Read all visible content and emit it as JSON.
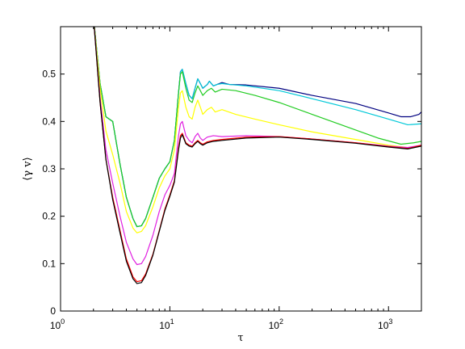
{
  "chart_data": {
    "type": "line",
    "title": "",
    "xlabel": "τ",
    "ylabel": "⟨γ v⟩",
    "xscale": "log",
    "xlim": [
      1,
      2000
    ],
    "ylim": [
      0,
      0.6
    ],
    "grid": false,
    "x_ticks": [
      {
        "value": 1,
        "base": "10",
        "exp": "0"
      },
      {
        "value": 10,
        "base": "10",
        "exp": "1"
      },
      {
        "value": 100,
        "base": "10",
        "exp": "2"
      },
      {
        "value": 1000,
        "base": "10",
        "exp": "3"
      }
    ],
    "y_ticks": [
      {
        "value": 0,
        "label": "0"
      },
      {
        "value": 0.1,
        "label": "0.1"
      },
      {
        "value": 0.2,
        "label": "0.2"
      },
      {
        "value": 0.3,
        "label": "0.3"
      },
      {
        "value": 0.4,
        "label": "0.4"
      },
      {
        "value": 0.5,
        "label": "0.5"
      }
    ],
    "series": [
      {
        "color": "#000080",
        "points": [
          [
            2.0,
            0.62
          ],
          [
            2.3,
            0.48
          ],
          [
            2.6,
            0.41
          ],
          [
            3.0,
            0.4
          ],
          [
            3.5,
            0.31
          ],
          [
            4.0,
            0.24
          ],
          [
            4.6,
            0.195
          ],
          [
            5.0,
            0.178
          ],
          [
            5.5,
            0.18
          ],
          [
            6.0,
            0.195
          ],
          [
            7.0,
            0.24
          ],
          [
            8.0,
            0.28
          ],
          [
            9.0,
            0.3
          ],
          [
            10.0,
            0.315
          ],
          [
            11.0,
            0.36
          ],
          [
            12.0,
            0.46
          ],
          [
            12.5,
            0.505
          ],
          [
            13.0,
            0.51
          ],
          [
            14.0,
            0.48
          ],
          [
            15.0,
            0.455
          ],
          [
            16.0,
            0.448
          ],
          [
            17.0,
            0.47
          ],
          [
            18.0,
            0.49
          ],
          [
            19.0,
            0.48
          ],
          [
            20.0,
            0.47
          ],
          [
            22.0,
            0.478
          ],
          [
            23.0,
            0.485
          ],
          [
            25.0,
            0.475
          ],
          [
            27.0,
            0.478
          ],
          [
            30.0,
            0.482
          ],
          [
            35.0,
            0.478
          ],
          [
            50.0,
            0.477
          ],
          [
            100.0,
            0.47
          ],
          [
            200.0,
            0.455
          ],
          [
            500.0,
            0.438
          ],
          [
            1000.0,
            0.418
          ],
          [
            1300.0,
            0.41
          ],
          [
            1600.0,
            0.41
          ],
          [
            1900.0,
            0.415
          ],
          [
            2000.0,
            0.42
          ]
        ]
      },
      {
        "color": "#00c8d8",
        "points": [
          [
            2.0,
            0.62
          ],
          [
            2.3,
            0.48
          ],
          [
            2.6,
            0.41
          ],
          [
            3.0,
            0.4
          ],
          [
            3.5,
            0.31
          ],
          [
            4.0,
            0.24
          ],
          [
            4.6,
            0.195
          ],
          [
            5.0,
            0.178
          ],
          [
            5.5,
            0.18
          ],
          [
            6.0,
            0.195
          ],
          [
            7.0,
            0.24
          ],
          [
            8.0,
            0.28
          ],
          [
            9.0,
            0.3
          ],
          [
            10.0,
            0.315
          ],
          [
            11.0,
            0.36
          ],
          [
            12.0,
            0.46
          ],
          [
            12.5,
            0.505
          ],
          [
            13.0,
            0.51
          ],
          [
            14.0,
            0.48
          ],
          [
            15.0,
            0.455
          ],
          [
            16.0,
            0.448
          ],
          [
            17.0,
            0.47
          ],
          [
            18.0,
            0.49
          ],
          [
            19.0,
            0.48
          ],
          [
            20.0,
            0.47
          ],
          [
            22.0,
            0.478
          ],
          [
            23.0,
            0.485
          ],
          [
            25.0,
            0.475
          ],
          [
            27.0,
            0.478
          ],
          [
            30.0,
            0.48
          ],
          [
            35.0,
            0.478
          ],
          [
            50.0,
            0.475
          ],
          [
            100.0,
            0.465
          ],
          [
            200.0,
            0.448
          ],
          [
            500.0,
            0.425
          ],
          [
            1000.0,
            0.405
          ],
          [
            1500.0,
            0.393
          ],
          [
            2000.0,
            0.395
          ]
        ]
      },
      {
        "color": "#22cc22",
        "points": [
          [
            2.0,
            0.62
          ],
          [
            2.3,
            0.48
          ],
          [
            2.6,
            0.41
          ],
          [
            3.0,
            0.4
          ],
          [
            3.5,
            0.31
          ],
          [
            4.0,
            0.24
          ],
          [
            4.6,
            0.195
          ],
          [
            5.0,
            0.178
          ],
          [
            5.5,
            0.18
          ],
          [
            6.0,
            0.195
          ],
          [
            7.0,
            0.24
          ],
          [
            8.0,
            0.28
          ],
          [
            9.0,
            0.3
          ],
          [
            10.0,
            0.315
          ],
          [
            11.0,
            0.36
          ],
          [
            12.0,
            0.46
          ],
          [
            12.5,
            0.5
          ],
          [
            13.0,
            0.505
          ],
          [
            14.0,
            0.47
          ],
          [
            15.0,
            0.445
          ],
          [
            16.0,
            0.44
          ],
          [
            17.0,
            0.46
          ],
          [
            18.0,
            0.475
          ],
          [
            19.0,
            0.465
          ],
          [
            20.0,
            0.455
          ],
          [
            22.0,
            0.465
          ],
          [
            24.0,
            0.47
          ],
          [
            26.0,
            0.462
          ],
          [
            30.0,
            0.468
          ],
          [
            40.0,
            0.465
          ],
          [
            60.0,
            0.455
          ],
          [
            100.0,
            0.44
          ],
          [
            200.0,
            0.415
          ],
          [
            400.0,
            0.39
          ],
          [
            800.0,
            0.365
          ],
          [
            1300.0,
            0.352
          ],
          [
            1700.0,
            0.355
          ],
          [
            2000.0,
            0.358
          ]
        ]
      },
      {
        "color": "#ffff00",
        "points": [
          [
            2.0,
            0.62
          ],
          [
            2.3,
            0.47
          ],
          [
            2.6,
            0.38
          ],
          [
            3.0,
            0.33
          ],
          [
            3.5,
            0.27
          ],
          [
            4.0,
            0.21
          ],
          [
            4.6,
            0.175
          ],
          [
            5.0,
            0.165
          ],
          [
            5.5,
            0.168
          ],
          [
            6.0,
            0.18
          ],
          [
            7.0,
            0.22
          ],
          [
            8.0,
            0.26
          ],
          [
            9.0,
            0.285
          ],
          [
            10.0,
            0.3
          ],
          [
            11.0,
            0.34
          ],
          [
            12.0,
            0.43
          ],
          [
            12.5,
            0.46
          ],
          [
            13.0,
            0.465
          ],
          [
            14.0,
            0.43
          ],
          [
            15.0,
            0.41
          ],
          [
            16.0,
            0.405
          ],
          [
            17.0,
            0.43
          ],
          [
            18.0,
            0.445
          ],
          [
            19.0,
            0.43
          ],
          [
            20.0,
            0.415
          ],
          [
            22.0,
            0.425
          ],
          [
            24.0,
            0.43
          ],
          [
            26.0,
            0.42
          ],
          [
            30.0,
            0.425
          ],
          [
            40.0,
            0.415
          ],
          [
            60.0,
            0.405
          ],
          [
            100.0,
            0.393
          ],
          [
            200.0,
            0.378
          ],
          [
            500.0,
            0.362
          ],
          [
            1000.0,
            0.35
          ],
          [
            1500.0,
            0.345
          ],
          [
            2000.0,
            0.348
          ]
        ]
      },
      {
        "color": "#e020e0",
        "points": [
          [
            2.0,
            0.62
          ],
          [
            2.3,
            0.45
          ],
          [
            2.6,
            0.34
          ],
          [
            3.0,
            0.27
          ],
          [
            3.5,
            0.2
          ],
          [
            4.0,
            0.145
          ],
          [
            4.6,
            0.11
          ],
          [
            5.0,
            0.098
          ],
          [
            5.5,
            0.1
          ],
          [
            6.0,
            0.115
          ],
          [
            7.0,
            0.16
          ],
          [
            8.0,
            0.21
          ],
          [
            9.0,
            0.245
          ],
          [
            10.0,
            0.265
          ],
          [
            11.0,
            0.29
          ],
          [
            12.0,
            0.37
          ],
          [
            12.5,
            0.395
          ],
          [
            13.0,
            0.4
          ],
          [
            14.0,
            0.37
          ],
          [
            15.0,
            0.36
          ],
          [
            16.0,
            0.355
          ],
          [
            17.0,
            0.368
          ],
          [
            18.0,
            0.375
          ],
          [
            19.0,
            0.365
          ],
          [
            20.0,
            0.36
          ],
          [
            22.0,
            0.367
          ],
          [
            25.0,
            0.37
          ],
          [
            30.0,
            0.368
          ],
          [
            50.0,
            0.37
          ],
          [
            100.0,
            0.368
          ],
          [
            200.0,
            0.363
          ],
          [
            500.0,
            0.355
          ],
          [
            1000.0,
            0.348
          ],
          [
            1500.0,
            0.345
          ],
          [
            2000.0,
            0.35
          ]
        ]
      },
      {
        "color": "#ff0000",
        "points": [
          [
            2.0,
            0.62
          ],
          [
            2.3,
            0.44
          ],
          [
            2.6,
            0.32
          ],
          [
            3.0,
            0.24
          ],
          [
            3.5,
            0.17
          ],
          [
            4.0,
            0.11
          ],
          [
            4.6,
            0.072
          ],
          [
            5.0,
            0.062
          ],
          [
            5.5,
            0.064
          ],
          [
            6.0,
            0.078
          ],
          [
            7.0,
            0.12
          ],
          [
            8.0,
            0.17
          ],
          [
            9.0,
            0.215
          ],
          [
            10.0,
            0.245
          ],
          [
            11.0,
            0.275
          ],
          [
            12.0,
            0.345
          ],
          [
            12.5,
            0.37
          ],
          [
            13.0,
            0.375
          ],
          [
            14.0,
            0.355
          ],
          [
            15.0,
            0.35
          ],
          [
            16.0,
            0.348
          ],
          [
            17.0,
            0.355
          ],
          [
            18.0,
            0.36
          ],
          [
            19.0,
            0.355
          ],
          [
            20.0,
            0.352
          ],
          [
            22.0,
            0.357
          ],
          [
            25.0,
            0.36
          ],
          [
            30.0,
            0.362
          ],
          [
            50.0,
            0.367
          ],
          [
            100.0,
            0.368
          ],
          [
            200.0,
            0.363
          ],
          [
            500.0,
            0.355
          ],
          [
            1000.0,
            0.347
          ],
          [
            1500.0,
            0.343
          ],
          [
            2000.0,
            0.35
          ]
        ]
      },
      {
        "color": "#000000",
        "points": [
          [
            2.0,
            0.62
          ],
          [
            2.3,
            0.44
          ],
          [
            2.6,
            0.32
          ],
          [
            3.0,
            0.235
          ],
          [
            3.5,
            0.165
          ],
          [
            4.0,
            0.105
          ],
          [
            4.6,
            0.068
          ],
          [
            5.0,
            0.058
          ],
          [
            5.5,
            0.06
          ],
          [
            6.0,
            0.075
          ],
          [
            7.0,
            0.118
          ],
          [
            8.0,
            0.168
          ],
          [
            9.0,
            0.212
          ],
          [
            10.0,
            0.242
          ],
          [
            11.0,
            0.272
          ],
          [
            12.0,
            0.34
          ],
          [
            12.5,
            0.365
          ],
          [
            13.0,
            0.372
          ],
          [
            14.0,
            0.353
          ],
          [
            15.0,
            0.348
          ],
          [
            16.0,
            0.346
          ],
          [
            17.0,
            0.353
          ],
          [
            18.0,
            0.358
          ],
          [
            19.0,
            0.353
          ],
          [
            20.0,
            0.35
          ],
          [
            22.0,
            0.355
          ],
          [
            25.0,
            0.358
          ],
          [
            30.0,
            0.36
          ],
          [
            50.0,
            0.365
          ],
          [
            100.0,
            0.367
          ],
          [
            200.0,
            0.362
          ],
          [
            500.0,
            0.354
          ],
          [
            1000.0,
            0.346
          ],
          [
            1500.0,
            0.342
          ],
          [
            2000.0,
            0.348
          ]
        ]
      }
    ]
  }
}
